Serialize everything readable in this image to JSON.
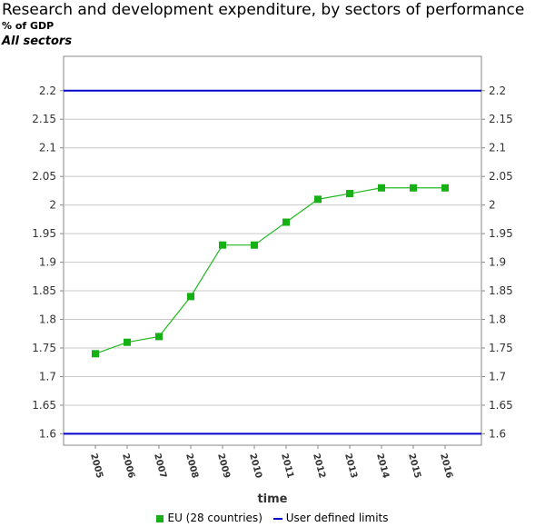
{
  "header": {
    "title": "Research and development expenditure, by sectors of performance",
    "unit": "% of GDP",
    "sector": "All sectors"
  },
  "colors": {
    "series": "#22b822",
    "series_marker": "#14b014",
    "limits": "#0000cc",
    "grid": "#c8c8c8",
    "axis": "#888888"
  },
  "legend": {
    "series_label": "EU (28 countries)",
    "limits_label": "User defined limits"
  },
  "chart_data": {
    "type": "line",
    "title": "Research and development expenditure, by sectors of performance",
    "xlabel": "time",
    "ylabel": "",
    "categories": [
      "2005",
      "2006",
      "2007",
      "2008",
      "2009",
      "2010",
      "2011",
      "2012",
      "2013",
      "2014",
      "2015",
      "2016"
    ],
    "series": [
      {
        "name": "EU (28 countries)",
        "values": [
          1.74,
          1.76,
          1.77,
          1.84,
          1.93,
          1.93,
          1.97,
          2.01,
          2.02,
          2.03,
          2.03,
          2.03
        ]
      }
    ],
    "limits": {
      "name": "User defined limits",
      "values": [
        1.6,
        2.2
      ]
    },
    "ylim": [
      1.58,
      2.26
    ],
    "yticks": [
      "1.6",
      "1.65",
      "1.7",
      "1.75",
      "1.8",
      "1.85",
      "1.9",
      "1.95",
      "2",
      "2.05",
      "2.1",
      "2.15",
      "2.2"
    ],
    "grid": true,
    "legend_position": "bottom"
  }
}
